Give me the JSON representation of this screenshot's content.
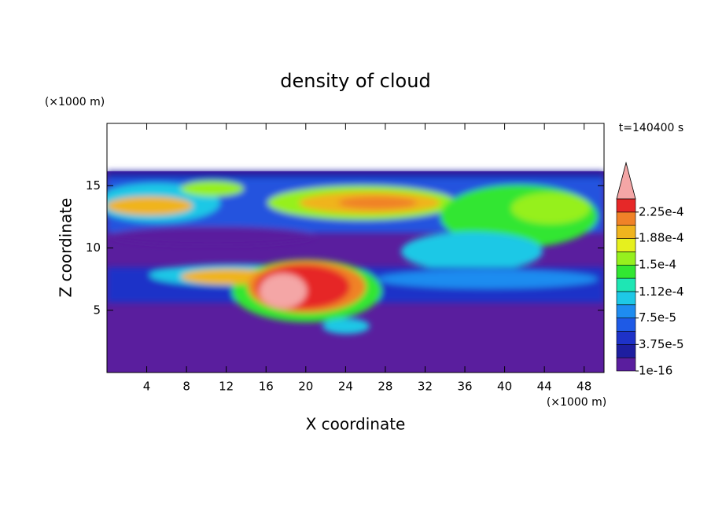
{
  "chart_data": {
    "type": "contour",
    "title": "density of cloud",
    "x_label": "X coordinate",
    "y_label": "Z coordinate",
    "x_unit": "(×1000 m)",
    "y_unit": "(×1000 m)",
    "annotation": "t=140400 s",
    "xlim": [
      0,
      50
    ],
    "xticks": [
      4,
      8,
      12,
      16,
      20,
      24,
      28,
      32,
      36,
      40,
      44,
      48
    ],
    "ylim": [
      0,
      20
    ],
    "yticks": [
      5,
      10,
      15
    ],
    "colorbar": {
      "lim": [
        1e-16,
        0.00024375
      ],
      "ticks": [
        1e-16,
        {
          "value": 3.75e-05,
          "label": "3.75e-5"
        },
        {
          "value": 7.5e-05,
          "label": "7.5e-5"
        },
        {
          "value": 0.000112,
          "label": "1.12e-4"
        },
        {
          "value": 0.00015,
          "label": "1.5e-4"
        },
        {
          "value": 0.000188,
          "label": "1.88e-4"
        },
        {
          "value": 0.000225,
          "label": "2.25e-4"
        }
      ],
      "colors": [
        "#5a1e9e",
        "#1e1ea0",
        "#1e32c8",
        "#1e5ae6",
        "#1e8cf0",
        "#1ec8e6",
        "#1ee6b4",
        "#32e632",
        "#96f01e",
        "#e6f01e",
        "#f0b41e",
        "#f08228",
        "#e62828"
      ],
      "extend_color": "#f4a6a6"
    }
  }
}
